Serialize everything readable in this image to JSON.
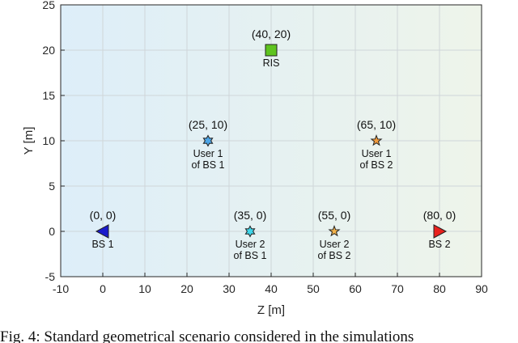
{
  "chart_data": {
    "type": "scatter",
    "xlabel": "Z [m]",
    "ylabel": "Y [m]",
    "xlim": [
      -10,
      90
    ],
    "ylim": [
      -5,
      25
    ],
    "xticks": [
      -10,
      0,
      10,
      20,
      30,
      40,
      50,
      60,
      70,
      80,
      90
    ],
    "yticks": [
      -5,
      0,
      5,
      10,
      15,
      20,
      25
    ],
    "grid": true,
    "background_gradient": [
      "#ddeef9",
      "#eef4ea"
    ],
    "points": [
      {
        "x": 0,
        "y": 0,
        "coord": "(0, 0)",
        "label": [
          "BS 1"
        ],
        "marker": "triangle-left",
        "color": "#1a1acc"
      },
      {
        "x": 25,
        "y": 10,
        "coord": "(25, 10)",
        "label": [
          "User 1",
          "of BS 1"
        ],
        "marker": "hexagram",
        "color": "#4da6e8"
      },
      {
        "x": 35,
        "y": 0,
        "coord": "(35, 0)",
        "label": [
          "User 2",
          "of BS 1"
        ],
        "marker": "hexagram",
        "color": "#3fd6ea"
      },
      {
        "x": 40,
        "y": 20,
        "coord": "(40, 20)",
        "label": [
          "RIS"
        ],
        "marker": "square",
        "color": "#5ec41f"
      },
      {
        "x": 55,
        "y": 0,
        "coord": "(55, 0)",
        "label": [
          "User 2",
          "of BS 2"
        ],
        "marker": "pentagram",
        "color": "#f2b24a"
      },
      {
        "x": 65,
        "y": 10,
        "coord": "(65, 10)",
        "label": [
          "User 1",
          "of BS 2"
        ],
        "marker": "pentagram",
        "color": "#f09a3c"
      },
      {
        "x": 80,
        "y": 0,
        "coord": "(80, 0)",
        "label": [
          "BS 2"
        ],
        "marker": "triangle-right",
        "color": "#e8211d"
      }
    ]
  },
  "caption": "Fig. 4: Standard geometrical scenario considered in the simulations"
}
